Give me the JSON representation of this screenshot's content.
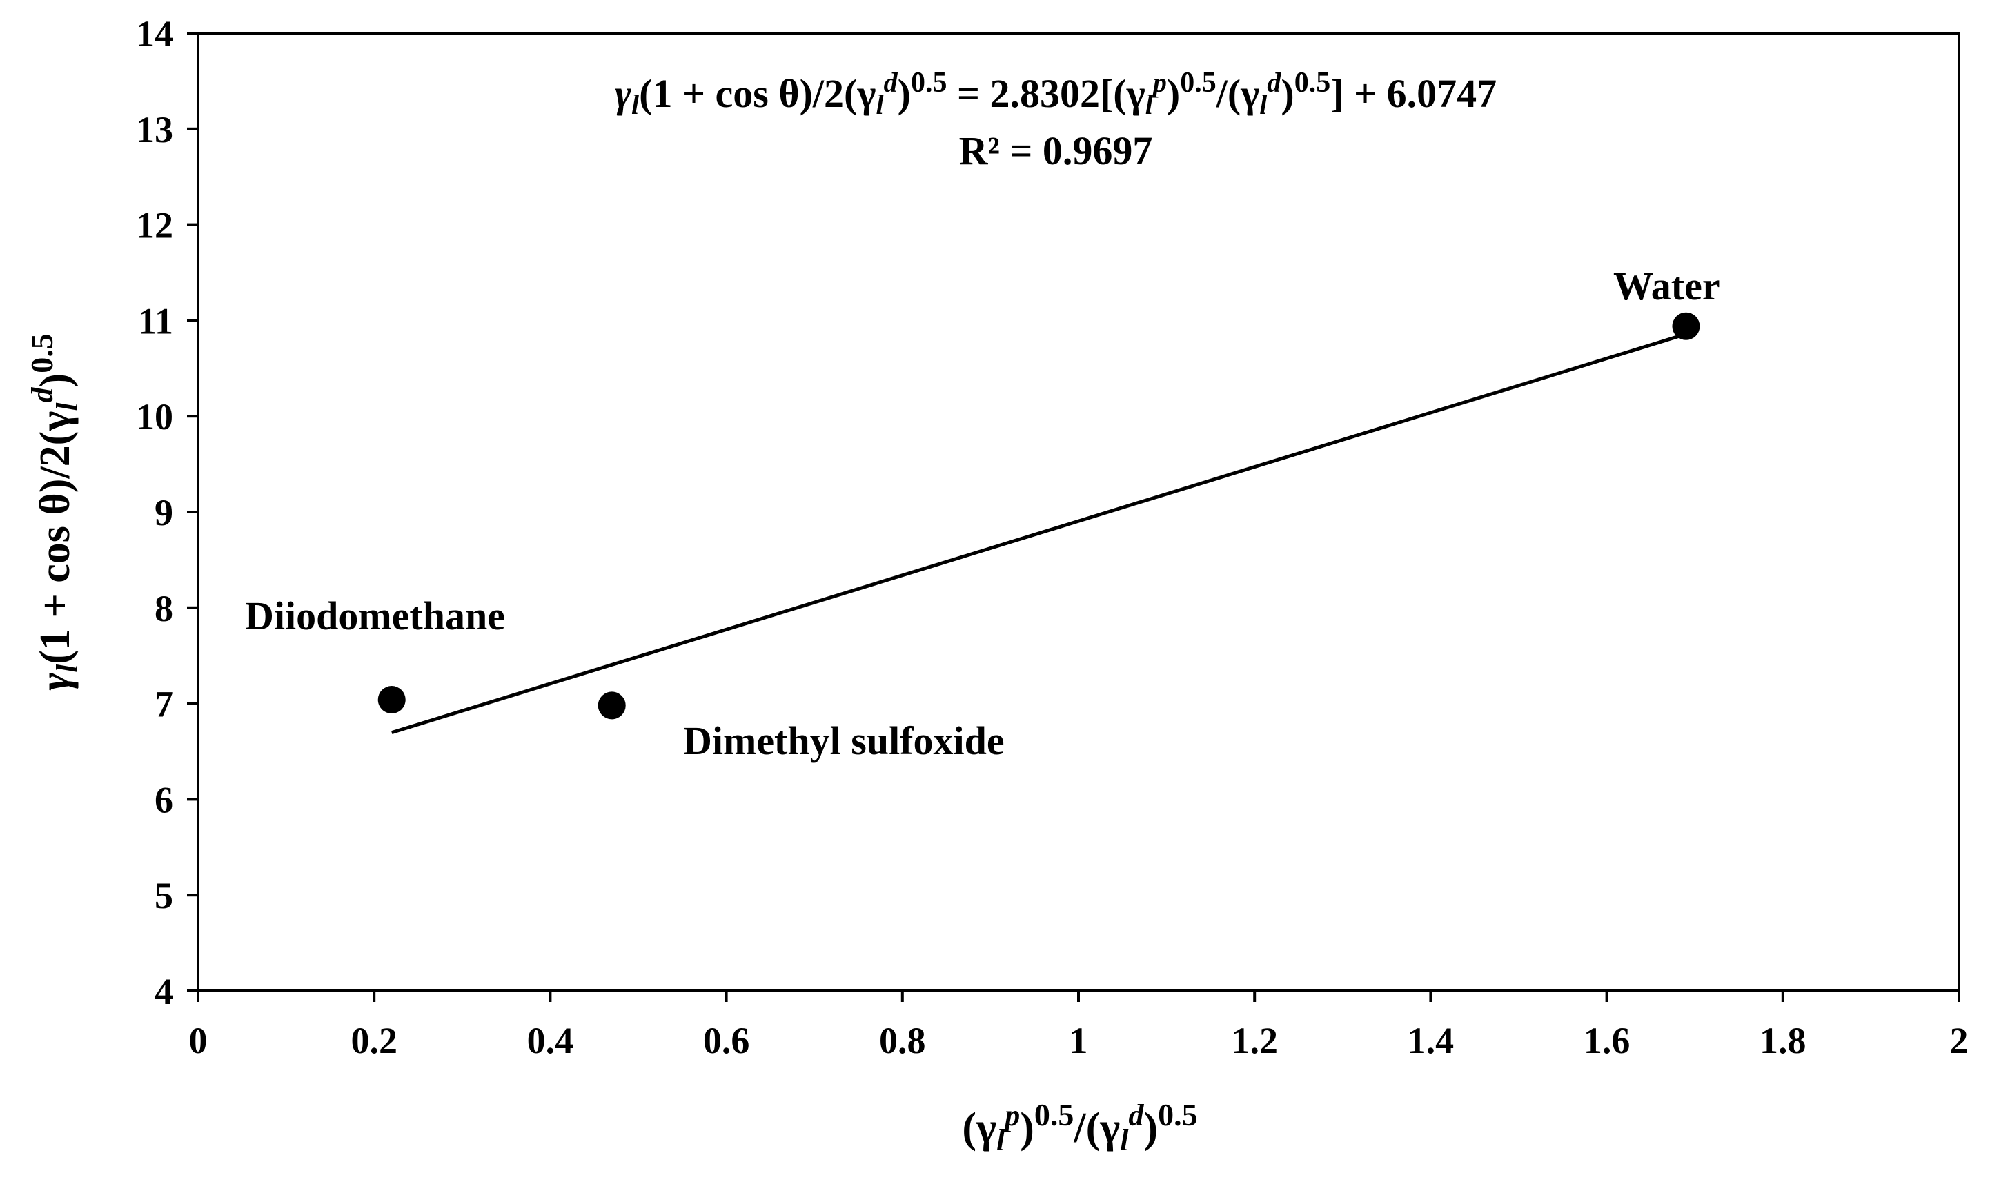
{
  "chart_data": {
    "type": "scatter",
    "xlabel": {
      "p1": "(γ",
      "sub1": "l",
      "sup1": "p",
      "p2": ")",
      "exp1": "0.5",
      "p3": "/(γ",
      "sub2": "l",
      "sup2": "d",
      "p4": ")",
      "exp2": "0.5"
    },
    "ylabel": {
      "p1": "γ",
      "sub1": "l",
      "p2": "(1 + cos θ)/2(γ",
      "sub2": "l",
      "sup2": "d",
      "p3": ")",
      "exp": "0.5"
    },
    "xlim": [
      0,
      2
    ],
    "ylim": [
      4,
      14
    ],
    "xticks": [
      "0",
      "0.2",
      "0.4",
      "0.6",
      "0.8",
      "1",
      "1.2",
      "1.4",
      "1.6",
      "1.8",
      "2"
    ],
    "yticks": [
      "4",
      "5",
      "6",
      "7",
      "8",
      "9",
      "10",
      "11",
      "12",
      "13",
      "14"
    ],
    "grid": false,
    "points": [
      {
        "label": "Diiodomethane",
        "x": 0.22,
        "y": 7.04
      },
      {
        "label": "Dimethyl sulfoxide",
        "x": 0.47,
        "y": 6.98
      },
      {
        "label": "Water",
        "x": 1.69,
        "y": 10.94
      }
    ],
    "trendline": {
      "slope": 2.8302,
      "intercept": 6.0747,
      "x_from": 0.22,
      "x_to": 1.69
    },
    "equation": {
      "p1": "γ",
      "sub1": "l",
      "p2": "(1 + cos θ)/2(γ",
      "sub2": "l",
      "sup2": "d",
      "p3": ")",
      "exp1": "0.5",
      "p4": " = 2.8302[(γ",
      "sub3": "l",
      "sup3": "p",
      "p5": ")",
      "exp2": "0.5",
      "p6": "/(γ",
      "sub4": "l",
      "sup4": "d",
      "p7": ")",
      "exp3": "0.5",
      "p8": "] + 6.0747"
    },
    "r_squared": "R² = 0.9697"
  }
}
